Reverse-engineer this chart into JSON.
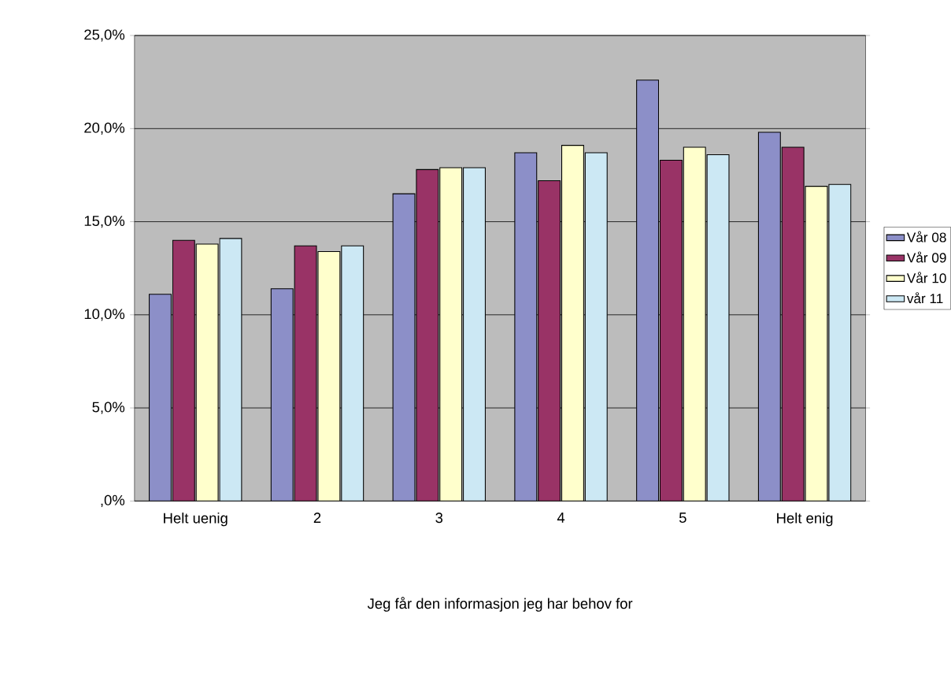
{
  "chart_data": {
    "type": "bar",
    "xlabel": "Jeg får den informasjon jeg har behov for",
    "categories": [
      "Helt uenig",
      "2",
      "3",
      "4",
      "5",
      "Helt enig"
    ],
    "series": [
      {
        "name": "Vår 08",
        "color": "#8c8fc8",
        "values": [
          11.1,
          11.4,
          16.5,
          18.7,
          22.6,
          19.8
        ]
      },
      {
        "name": "Vår 09",
        "color": "#993366",
        "values": [
          14.0,
          13.7,
          17.8,
          17.2,
          18.3,
          19.0
        ]
      },
      {
        "name": "Vår 10",
        "color": "#ffffcc",
        "values": [
          13.8,
          13.4,
          17.9,
          19.1,
          19.0,
          16.9
        ]
      },
      {
        "name": "vår 11",
        "color": "#cce8f4",
        "values": [
          14.1,
          13.7,
          17.9,
          18.7,
          18.6,
          17.0
        ]
      }
    ],
    "ylim": [
      0,
      25
    ],
    "yticks": [
      {
        "value": 0,
        "label": ",0%"
      },
      {
        "value": 5,
        "label": "5,0%"
      },
      {
        "value": 10,
        "label": "10,0%"
      },
      {
        "value": 15,
        "label": "15,0%"
      },
      {
        "value": 20,
        "label": "20,0%"
      },
      {
        "value": 25,
        "label": "25,0%"
      }
    ],
    "grid": "y",
    "legend": "right"
  }
}
